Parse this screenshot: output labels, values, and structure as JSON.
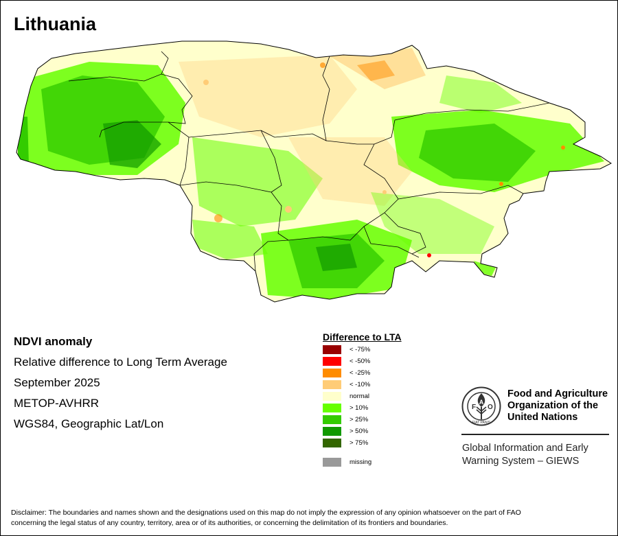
{
  "map": {
    "title": "Lithuania",
    "country": "Lithuania"
  },
  "info": {
    "product": "NDVI anomaly",
    "description": "Relative difference to Long Term Average",
    "period": "September 2025",
    "sensor": "METOP-AVHRR",
    "projection": "WGS84, Geographic Lat/Lon"
  },
  "legend": {
    "title": "Difference to LTA",
    "items": [
      {
        "label": "< -75%",
        "color": "#990000"
      },
      {
        "label": "< -50%",
        "color": "#ff0000"
      },
      {
        "label": "< -25%",
        "color": "#ff8c00"
      },
      {
        "label": "< -10%",
        "color": "#ffcc77"
      },
      {
        "label": "normal",
        "color": "#ffffcc"
      },
      {
        "label": "> 10%",
        "color": "#66ff00"
      },
      {
        "label": "> 25%",
        "color": "#33cc00"
      },
      {
        "label": "> 50%",
        "color": "#119900"
      },
      {
        "label": "> 75%",
        "color": "#336600"
      }
    ],
    "missing": {
      "label": "missing",
      "color": "#999999"
    }
  },
  "logo": {
    "letters": "FAO",
    "motto": "FIAT PANIS"
  },
  "organization": {
    "line1": "Food and Agriculture",
    "line2": "Organization of the",
    "line3": "United Nations"
  },
  "giews": {
    "line1": "Global Information and Early",
    "line2": "Warning System – GIEWS"
  },
  "disclaimer": {
    "line1": "Disclaimer: The boundaries and names shown and the designations used on this map do not imply the expression of any opinion whatsoever on the part of FAO",
    "line2": "concerning the legal status of any country, territory, area or of its authorities, or concerning the delimitation of its frontiers and boundaries."
  }
}
